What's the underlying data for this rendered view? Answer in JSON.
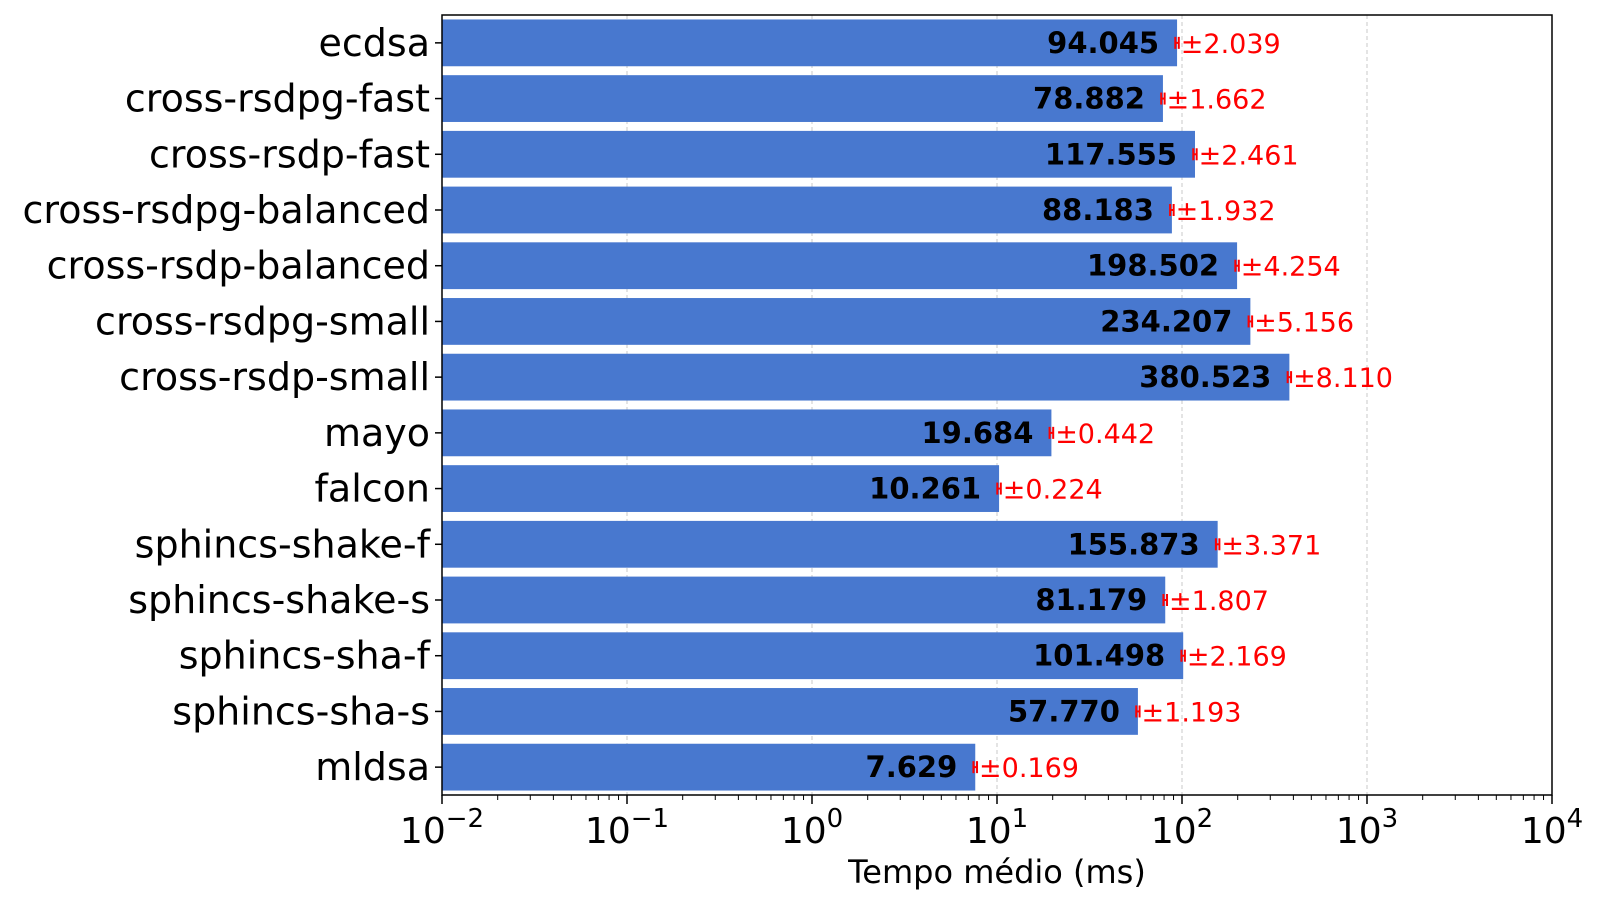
{
  "chart_data": {
    "type": "bar",
    "orientation": "horizontal",
    "categories": [
      "ecdsa",
      "cross-rsdpg-fast",
      "cross-rsdp-fast",
      "cross-rsdpg-balanced",
      "cross-rsdp-balanced",
      "cross-rsdpg-small",
      "cross-rsdp-small",
      "mayo",
      "falcon",
      "sphincs-shake-f",
      "sphincs-shake-s",
      "sphincs-sha-f",
      "sphincs-sha-s",
      "mldsa"
    ],
    "values": [
      94.045,
      78.882,
      117.555,
      88.183,
      198.502,
      234.207,
      380.523,
      19.684,
      10.261,
      155.873,
      81.179,
      101.498,
      57.77,
      7.629
    ],
    "value_labels": [
      "94.045",
      "78.882",
      "117.555",
      "88.183",
      "198.502",
      "234.207",
      "380.523",
      "19.684",
      "10.261",
      "155.873",
      "81.179",
      "101.498",
      "57.770",
      "7.629"
    ],
    "errors": [
      2.039,
      1.662,
      2.461,
      1.932,
      4.254,
      5.156,
      8.11,
      0.442,
      0.224,
      3.371,
      1.807,
      2.169,
      1.193,
      0.169
    ],
    "error_labels": [
      "±2.039",
      "±1.662",
      "±2.461",
      "±1.932",
      "±4.254",
      "±5.156",
      "±8.110",
      "±0.442",
      "±0.224",
      "±3.371",
      "±1.807",
      "±2.169",
      "±1.193",
      "±0.169"
    ],
    "xlabel": "Tempo médio (ms)",
    "xscale": "log",
    "xlim": [
      0.01,
      10000
    ],
    "xticks": [
      {
        "base": "10",
        "exp": "−2"
      },
      {
        "base": "10",
        "exp": "−1"
      },
      {
        "base": "10",
        "exp": "0"
      },
      {
        "base": "10",
        "exp": "1"
      },
      {
        "base": "10",
        "exp": "2"
      },
      {
        "base": "10",
        "exp": "3"
      },
      {
        "base": "10",
        "exp": "4"
      }
    ],
    "grid": "x, dashed",
    "colors": {
      "bar": "#4878cf",
      "error": "#ff0000",
      "grid": "#c8c8c8"
    }
  }
}
